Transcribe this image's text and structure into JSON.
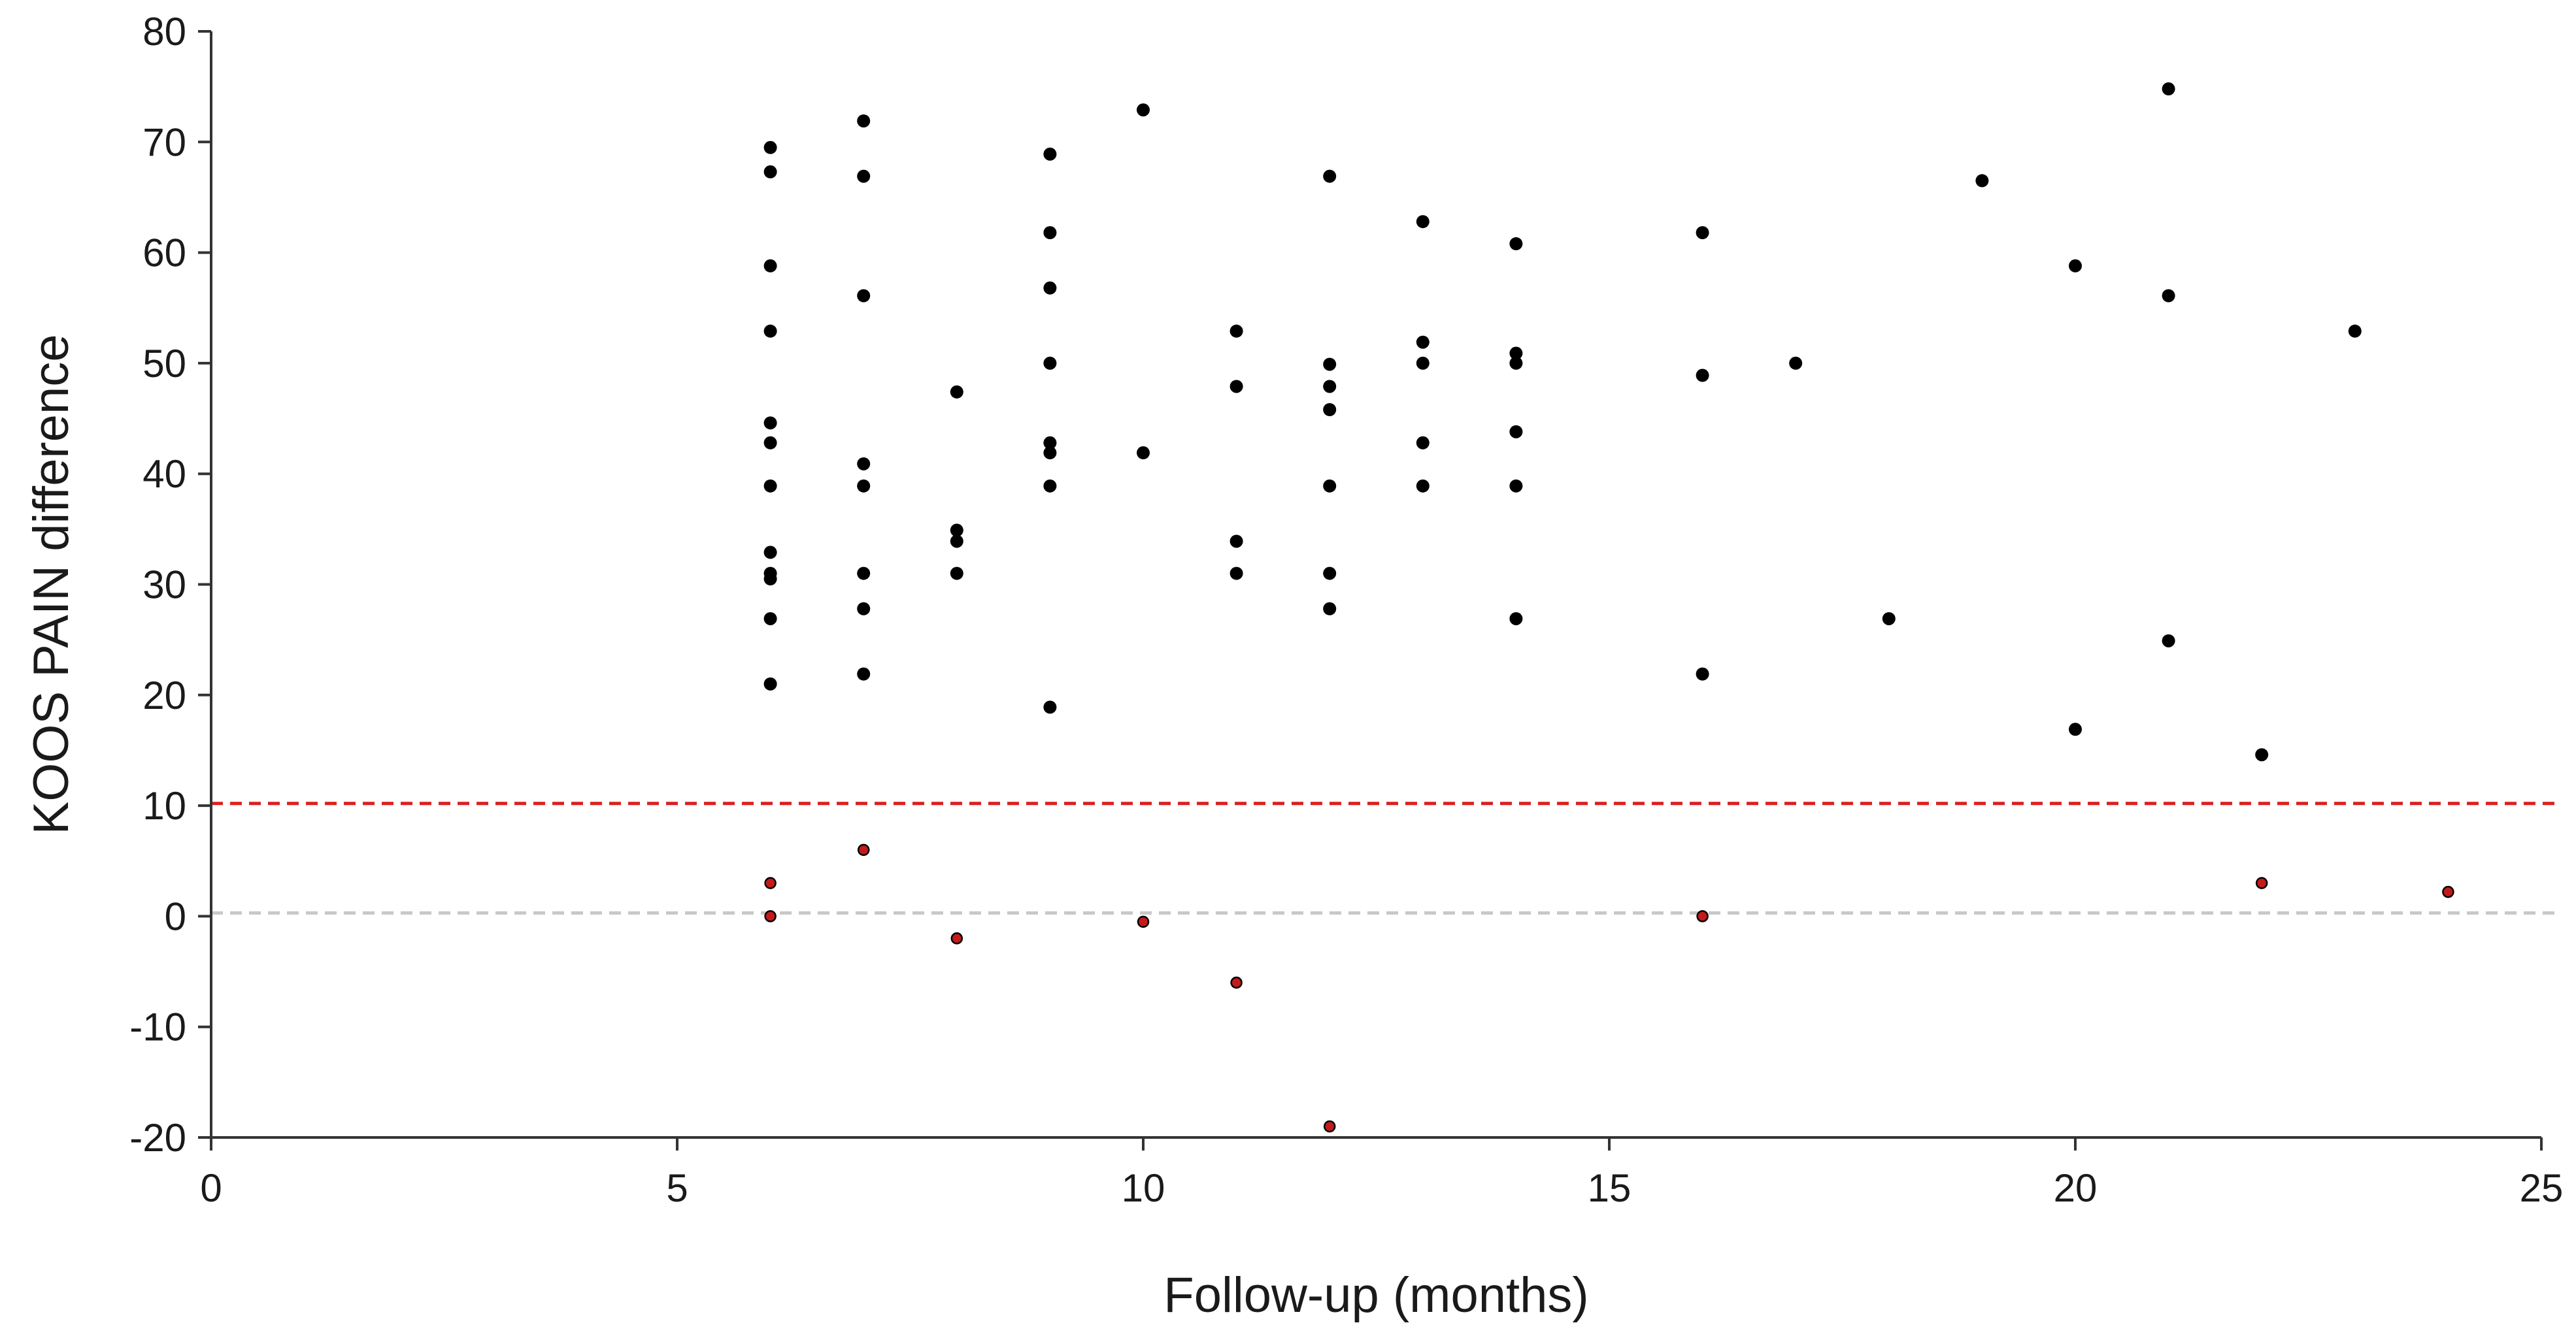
{
  "chart_data": {
    "type": "scatter",
    "title": "",
    "xlabel": "Follow-up (months)",
    "ylabel": "KOOS PAIN difference",
    "xlim": [
      0,
      25
    ],
    "ylim": [
      -20,
      80
    ],
    "x_ticks": [
      0,
      5,
      10,
      15,
      20,
      25
    ],
    "y_ticks": [
      -20,
      -10,
      0,
      10,
      20,
      30,
      40,
      50,
      60,
      70,
      80
    ],
    "grid": false,
    "legend": "none",
    "reference_lines": [
      {
        "y": 10.2,
        "style": "dashed",
        "color": "#dd1f1f"
      },
      {
        "y": 0.3,
        "style": "dashed",
        "color": "#c8c8c8"
      }
    ],
    "series": [
      {
        "color": "#000000",
        "points": [
          {
            "x": 6,
            "y": 69.5
          },
          {
            "x": 6,
            "y": 67.3
          },
          {
            "x": 6,
            "y": 58.8
          },
          {
            "x": 6,
            "y": 52.9
          },
          {
            "x": 6,
            "y": 44.6
          },
          {
            "x": 6,
            "y": 42.8
          },
          {
            "x": 6,
            "y": 38.9
          },
          {
            "x": 6,
            "y": 32.9
          },
          {
            "x": 6,
            "y": 31.0
          },
          {
            "x": 6,
            "y": 30.5
          },
          {
            "x": 6,
            "y": 26.9
          },
          {
            "x": 6,
            "y": 21.0
          },
          {
            "x": 7,
            "y": 71.9
          },
          {
            "x": 7,
            "y": 66.9
          },
          {
            "x": 7,
            "y": 56.1
          },
          {
            "x": 7,
            "y": 40.9
          },
          {
            "x": 7,
            "y": 38.9
          },
          {
            "x": 7,
            "y": 31.0
          },
          {
            "x": 7,
            "y": 27.8
          },
          {
            "x": 7,
            "y": 21.9
          },
          {
            "x": 8,
            "y": 47.4
          },
          {
            "x": 8,
            "y": 34.9
          },
          {
            "x": 8,
            "y": 33.9
          },
          {
            "x": 8,
            "y": 31.0
          },
          {
            "x": 9,
            "y": 68.9
          },
          {
            "x": 9,
            "y": 61.8
          },
          {
            "x": 9,
            "y": 56.8
          },
          {
            "x": 9,
            "y": 50.0
          },
          {
            "x": 9,
            "y": 42.8
          },
          {
            "x": 9,
            "y": 41.9
          },
          {
            "x": 9,
            "y": 38.9
          },
          {
            "x": 9,
            "y": 18.9
          },
          {
            "x": 10,
            "y": 72.9
          },
          {
            "x": 10,
            "y": 41.9
          },
          {
            "x": 11,
            "y": 52.9
          },
          {
            "x": 11,
            "y": 47.9
          },
          {
            "x": 11,
            "y": 33.9
          },
          {
            "x": 11,
            "y": 31.0
          },
          {
            "x": 12,
            "y": 66.9
          },
          {
            "x": 12,
            "y": 49.9
          },
          {
            "x": 12,
            "y": 47.9
          },
          {
            "x": 12,
            "y": 45.8
          },
          {
            "x": 12,
            "y": 38.9
          },
          {
            "x": 12,
            "y": 31.0
          },
          {
            "x": 12,
            "y": 27.8
          },
          {
            "x": 13,
            "y": 62.8
          },
          {
            "x": 13,
            "y": 51.9
          },
          {
            "x": 13,
            "y": 50.0
          },
          {
            "x": 13,
            "y": 42.8
          },
          {
            "x": 13,
            "y": 38.9
          },
          {
            "x": 14,
            "y": 60.8
          },
          {
            "x": 14,
            "y": 50.9
          },
          {
            "x": 14,
            "y": 50.0
          },
          {
            "x": 14,
            "y": 43.8
          },
          {
            "x": 14,
            "y": 38.9
          },
          {
            "x": 14,
            "y": 26.9
          },
          {
            "x": 16,
            "y": 61.8
          },
          {
            "x": 16,
            "y": 48.9
          },
          {
            "x": 16,
            "y": 21.9
          },
          {
            "x": 17,
            "y": 50.0
          },
          {
            "x": 18,
            "y": 26.9
          },
          {
            "x": 19,
            "y": 66.5
          },
          {
            "x": 20,
            "y": 58.8
          },
          {
            "x": 20,
            "y": 16.9
          },
          {
            "x": 21,
            "y": 74.8
          },
          {
            "x": 21,
            "y": 56.1
          },
          {
            "x": 21,
            "y": 24.9
          },
          {
            "x": 22,
            "y": 14.6
          },
          {
            "x": 23,
            "y": 52.9
          }
        ]
      },
      {
        "color": "#c41a1a",
        "points": [
          {
            "x": 6,
            "y": 3.0
          },
          {
            "x": 6,
            "y": 0.0
          },
          {
            "x": 7,
            "y": 6.0
          },
          {
            "x": 8,
            "y": -2.0
          },
          {
            "x": 10,
            "y": -0.5
          },
          {
            "x": 11,
            "y": -6.0
          },
          {
            "x": 12,
            "y": -19.0
          },
          {
            "x": 16,
            "y": 0.0
          },
          {
            "x": 22,
            "y": 3.0
          },
          {
            "x": 24,
            "y": 2.2
          }
        ]
      }
    ]
  }
}
